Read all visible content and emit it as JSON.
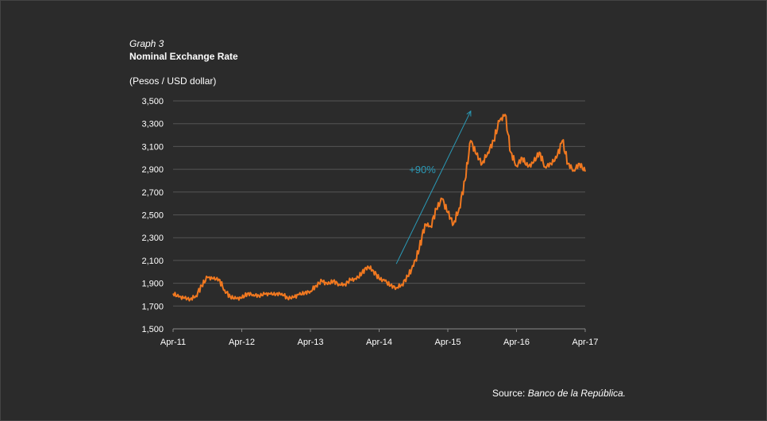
{
  "header": {
    "graph_number": "Graph 3",
    "title": "Nominal Exchange Rate",
    "unit": "(Pesos / USD dollar)"
  },
  "source": {
    "prefix": "Source: ",
    "name": "Banco de la República."
  },
  "colors": {
    "background": "#2b2b2b",
    "line": "#f07820",
    "arrow": "#2a9bb8",
    "grid": "#555555"
  },
  "chart_data": {
    "type": "line",
    "title": "Nominal Exchange Rate",
    "xlabel": "",
    "ylabel": "(Pesos / USD dollar)",
    "ylim": [
      1500,
      3500
    ],
    "yticks": [
      1500,
      1700,
      1900,
      2100,
      2300,
      2500,
      2700,
      2900,
      3100,
      3300,
      3500
    ],
    "ytick_labels": [
      "1,500",
      "1,700",
      "1,900",
      "2,100",
      "2,300",
      "2,500",
      "2,700",
      "2,900",
      "3,100",
      "3,300",
      "3,500"
    ],
    "xlim": [
      "2011-04",
      "2017-04"
    ],
    "xticks": [
      "2011-04",
      "2012-04",
      "2013-04",
      "2014-04",
      "2015-04",
      "2016-04",
      "2017-04"
    ],
    "xtick_labels": [
      "Apr-11",
      "Apr-12",
      "Apr-13",
      "Apr-14",
      "Apr-15",
      "Apr-16",
      "Apr-17"
    ],
    "grid": true,
    "series": [
      {
        "x": [
          "2011-04",
          "2011-05",
          "2011-06",
          "2011-07",
          "2011-08",
          "2011-09",
          "2011-10",
          "2011-11",
          "2011-12",
          "2012-01",
          "2012-02",
          "2012-03",
          "2012-04",
          "2012-05",
          "2012-06",
          "2012-07",
          "2012-08",
          "2012-09",
          "2012-10",
          "2012-11",
          "2012-12",
          "2013-01",
          "2013-02",
          "2013-03",
          "2013-04",
          "2013-05",
          "2013-06",
          "2013-07",
          "2013-08",
          "2013-09",
          "2013-10",
          "2013-11",
          "2013-12",
          "2014-01",
          "2014-02",
          "2014-03",
          "2014-04",
          "2014-05",
          "2014-06",
          "2014-07",
          "2014-08",
          "2014-09",
          "2014-10",
          "2014-11",
          "2014-12",
          "2015-01",
          "2015-02",
          "2015-03",
          "2015-04",
          "2015-05",
          "2015-06",
          "2015-07",
          "2015-08",
          "2015-09",
          "2015-10",
          "2015-11",
          "2015-12",
          "2016-01",
          "2016-02",
          "2016-03",
          "2016-04",
          "2016-05",
          "2016-06",
          "2016-07",
          "2016-08",
          "2016-09",
          "2016-10",
          "2016-11",
          "2016-12",
          "2017-01",
          "2017-02",
          "2017-03",
          "2017-04"
        ],
        "values": [
          1810,
          1780,
          1770,
          1760,
          1790,
          1880,
          1950,
          1940,
          1935,
          1840,
          1780,
          1765,
          1770,
          1810,
          1800,
          1790,
          1805,
          1805,
          1805,
          1810,
          1770,
          1775,
          1800,
          1815,
          1830,
          1880,
          1920,
          1890,
          1920,
          1890,
          1890,
          1930,
          1935,
          1990,
          2050,
          2010,
          1940,
          1920,
          1880,
          1860,
          1890,
          1960,
          2050,
          2200,
          2420,
          2400,
          2550,
          2640,
          2520,
          2420,
          2560,
          2800,
          3150,
          3030,
          2950,
          3050,
          3150,
          3320,
          3380,
          3050,
          2930,
          3000,
          2920,
          2960,
          3050,
          2920,
          2950,
          3000,
          3150,
          2950,
          2890,
          2950,
          2880
        ]
      }
    ],
    "annotations": [
      {
        "text": "+90%",
        "type": "arrow",
        "from": [
          "2014-07",
          2070
        ],
        "to": [
          "2015-08",
          3410
        ]
      }
    ]
  }
}
